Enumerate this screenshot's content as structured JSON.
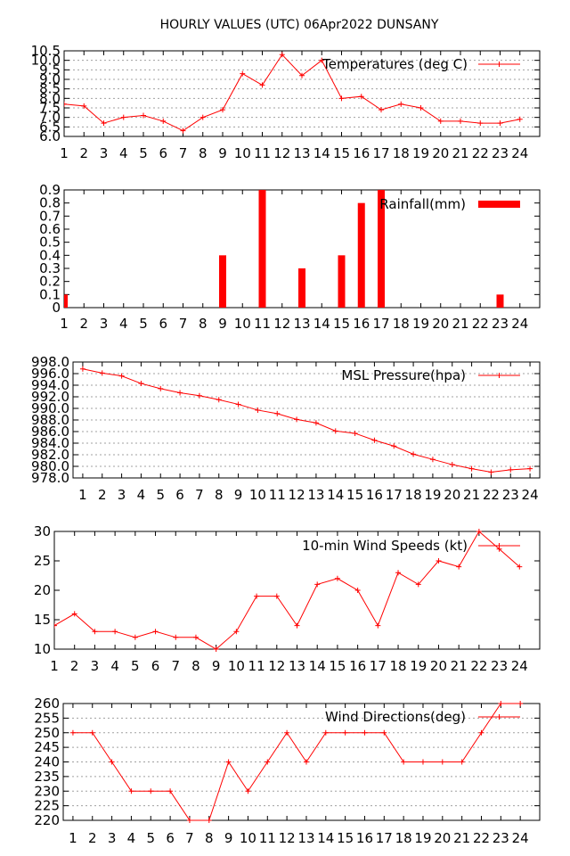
{
  "title": "HOURLY VALUES (UTC) 06Apr2022   DUNSANY",
  "colors": {
    "series": "#ff0000",
    "axis": "#000000",
    "grid": "#a0a0a0",
    "background": "#ffffff"
  },
  "chart_data": [
    {
      "type": "line",
      "legend": "Temperatures (deg C)",
      "legend_position": "top-right",
      "grid": true,
      "x": [
        1,
        2,
        3,
        4,
        5,
        6,
        7,
        8,
        9,
        10,
        11,
        12,
        13,
        14,
        15,
        16,
        17,
        18,
        19,
        20,
        21,
        22,
        23,
        24
      ],
      "values": [
        7.7,
        7.6,
        6.7,
        7.0,
        7.1,
        6.8,
        6.3,
        7.0,
        7.4,
        9.3,
        8.7,
        10.3,
        9.2,
        10.0,
        8.0,
        8.1,
        7.4,
        7.7,
        7.5,
        6.8,
        6.8,
        6.7,
        6.7,
        6.9
      ],
      "ylim": [
        6.0,
        10.5
      ],
      "yticks": [
        "6.0",
        "6.5",
        "7.0",
        "7.5",
        "8.0",
        "8.5",
        "9.0",
        "9.5",
        "10.0",
        "10.5"
      ],
      "xlim": [
        1,
        25
      ],
      "xticks": [
        "1",
        "2",
        "3",
        "4",
        "5",
        "6",
        "7",
        "8",
        "9",
        "10",
        "11",
        "12",
        "13",
        "14",
        "15",
        "16",
        "17",
        "18",
        "19",
        "20",
        "21",
        "22",
        "23",
        "24"
      ]
    },
    {
      "type": "bar",
      "legend": "Rainfall(mm)",
      "legend_position": "top-right",
      "grid": false,
      "x": [
        1,
        2,
        3,
        4,
        5,
        6,
        7,
        8,
        9,
        10,
        11,
        12,
        13,
        14,
        15,
        16,
        17,
        18,
        19,
        20,
        21,
        22,
        23,
        24
      ],
      "values": [
        0.1,
        0,
        0,
        0,
        0,
        0,
        0,
        0,
        0.4,
        0,
        0.9,
        0,
        0.3,
        0,
        0.4,
        0.8,
        0.9,
        0,
        0,
        0,
        0,
        0,
        0.1,
        0
      ],
      "ylim": [
        0,
        0.9
      ],
      "yticks": [
        "0",
        "0.1",
        "0.2",
        "0.3",
        "0.4",
        "0.5",
        "0.6",
        "0.7",
        "0.8",
        "0.9"
      ],
      "xlim": [
        1,
        25
      ],
      "xticks": [
        "1",
        "2",
        "3",
        "4",
        "5",
        "6",
        "7",
        "8",
        "9",
        "10",
        "11",
        "12",
        "13",
        "14",
        "15",
        "16",
        "17",
        "18",
        "19",
        "20",
        "21",
        "22",
        "23",
        "24"
      ]
    },
    {
      "type": "line",
      "legend": "MSL Pressure(hpa)",
      "legend_position": "top-right",
      "grid": true,
      "x": [
        1,
        2,
        3,
        4,
        5,
        6,
        7,
        8,
        9,
        10,
        11,
        12,
        13,
        14,
        15,
        16,
        17,
        18,
        19,
        20,
        21,
        22,
        23,
        24
      ],
      "values": [
        996.8,
        996.1,
        995.6,
        994.3,
        993.4,
        992.7,
        992.2,
        991.5,
        990.7,
        989.7,
        989.1,
        988.1,
        987.5,
        986.1,
        985.7,
        984.5,
        983.5,
        982.1,
        981.2,
        980.3,
        979.6,
        979.0,
        979.4,
        979.6
      ],
      "ylim": [
        978.0,
        998.0
      ],
      "yticks": [
        "978.0",
        "980.0",
        "982.0",
        "984.0",
        "986.0",
        "988.0",
        "990.0",
        "992.0",
        "994.0",
        "996.0",
        "998.0"
      ],
      "xlim": [
        0.5,
        24.5
      ],
      "xticks": [
        "1",
        "2",
        "3",
        "4",
        "5",
        "6",
        "7",
        "8",
        "9",
        "10",
        "11",
        "12",
        "13",
        "14",
        "15",
        "16",
        "17",
        "18",
        "19",
        "20",
        "21",
        "22",
        "23",
        "24"
      ]
    },
    {
      "type": "line",
      "legend": "10-min Wind Speeds (kt)",
      "legend_position": "top-right",
      "grid": false,
      "x": [
        1,
        2,
        3,
        4,
        5,
        6,
        7,
        8,
        9,
        10,
        11,
        12,
        13,
        14,
        15,
        16,
        17,
        18,
        19,
        20,
        21,
        22,
        23,
        24
      ],
      "values": [
        14,
        16,
        13,
        13,
        12,
        13,
        12,
        12,
        10,
        13,
        19,
        19,
        14,
        21,
        22,
        20,
        14,
        23,
        21,
        25,
        24,
        30,
        27,
        24
      ],
      "ylim": [
        10,
        30
      ],
      "yticks": [
        "10",
        "15",
        "20",
        "25",
        "30"
      ],
      "xlim": [
        1,
        25
      ],
      "xticks": [
        "1",
        "2",
        "3",
        "4",
        "5",
        "6",
        "7",
        "8",
        "9",
        "10",
        "11",
        "12",
        "13",
        "14",
        "15",
        "16",
        "17",
        "18",
        "19",
        "20",
        "21",
        "22",
        "23",
        "24"
      ]
    },
    {
      "type": "line",
      "legend": "Wind Directions(deg)",
      "legend_position": "top-right",
      "grid": true,
      "x": [
        1,
        2,
        3,
        4,
        5,
        6,
        7,
        8,
        9,
        10,
        11,
        12,
        13,
        14,
        15,
        16,
        17,
        18,
        19,
        20,
        21,
        22,
        23,
        24
      ],
      "values": [
        250,
        250,
        240,
        230,
        230,
        230,
        220,
        220,
        240,
        230,
        240,
        250,
        240,
        250,
        250,
        250,
        250,
        240,
        240,
        240,
        240,
        250,
        260,
        260
      ],
      "ylim": [
        220,
        260
      ],
      "yticks": [
        "220",
        "225",
        "230",
        "235",
        "240",
        "245",
        "250",
        "255",
        "260"
      ],
      "xlim": [
        0.5,
        25
      ],
      "xticks": [
        "1",
        "2",
        "3",
        "4",
        "5",
        "6",
        "7",
        "8",
        "9",
        "10",
        "11",
        "12",
        "13",
        "14",
        "15",
        "16",
        "17",
        "18",
        "19",
        "20",
        "21",
        "22",
        "23",
        "24"
      ]
    }
  ]
}
